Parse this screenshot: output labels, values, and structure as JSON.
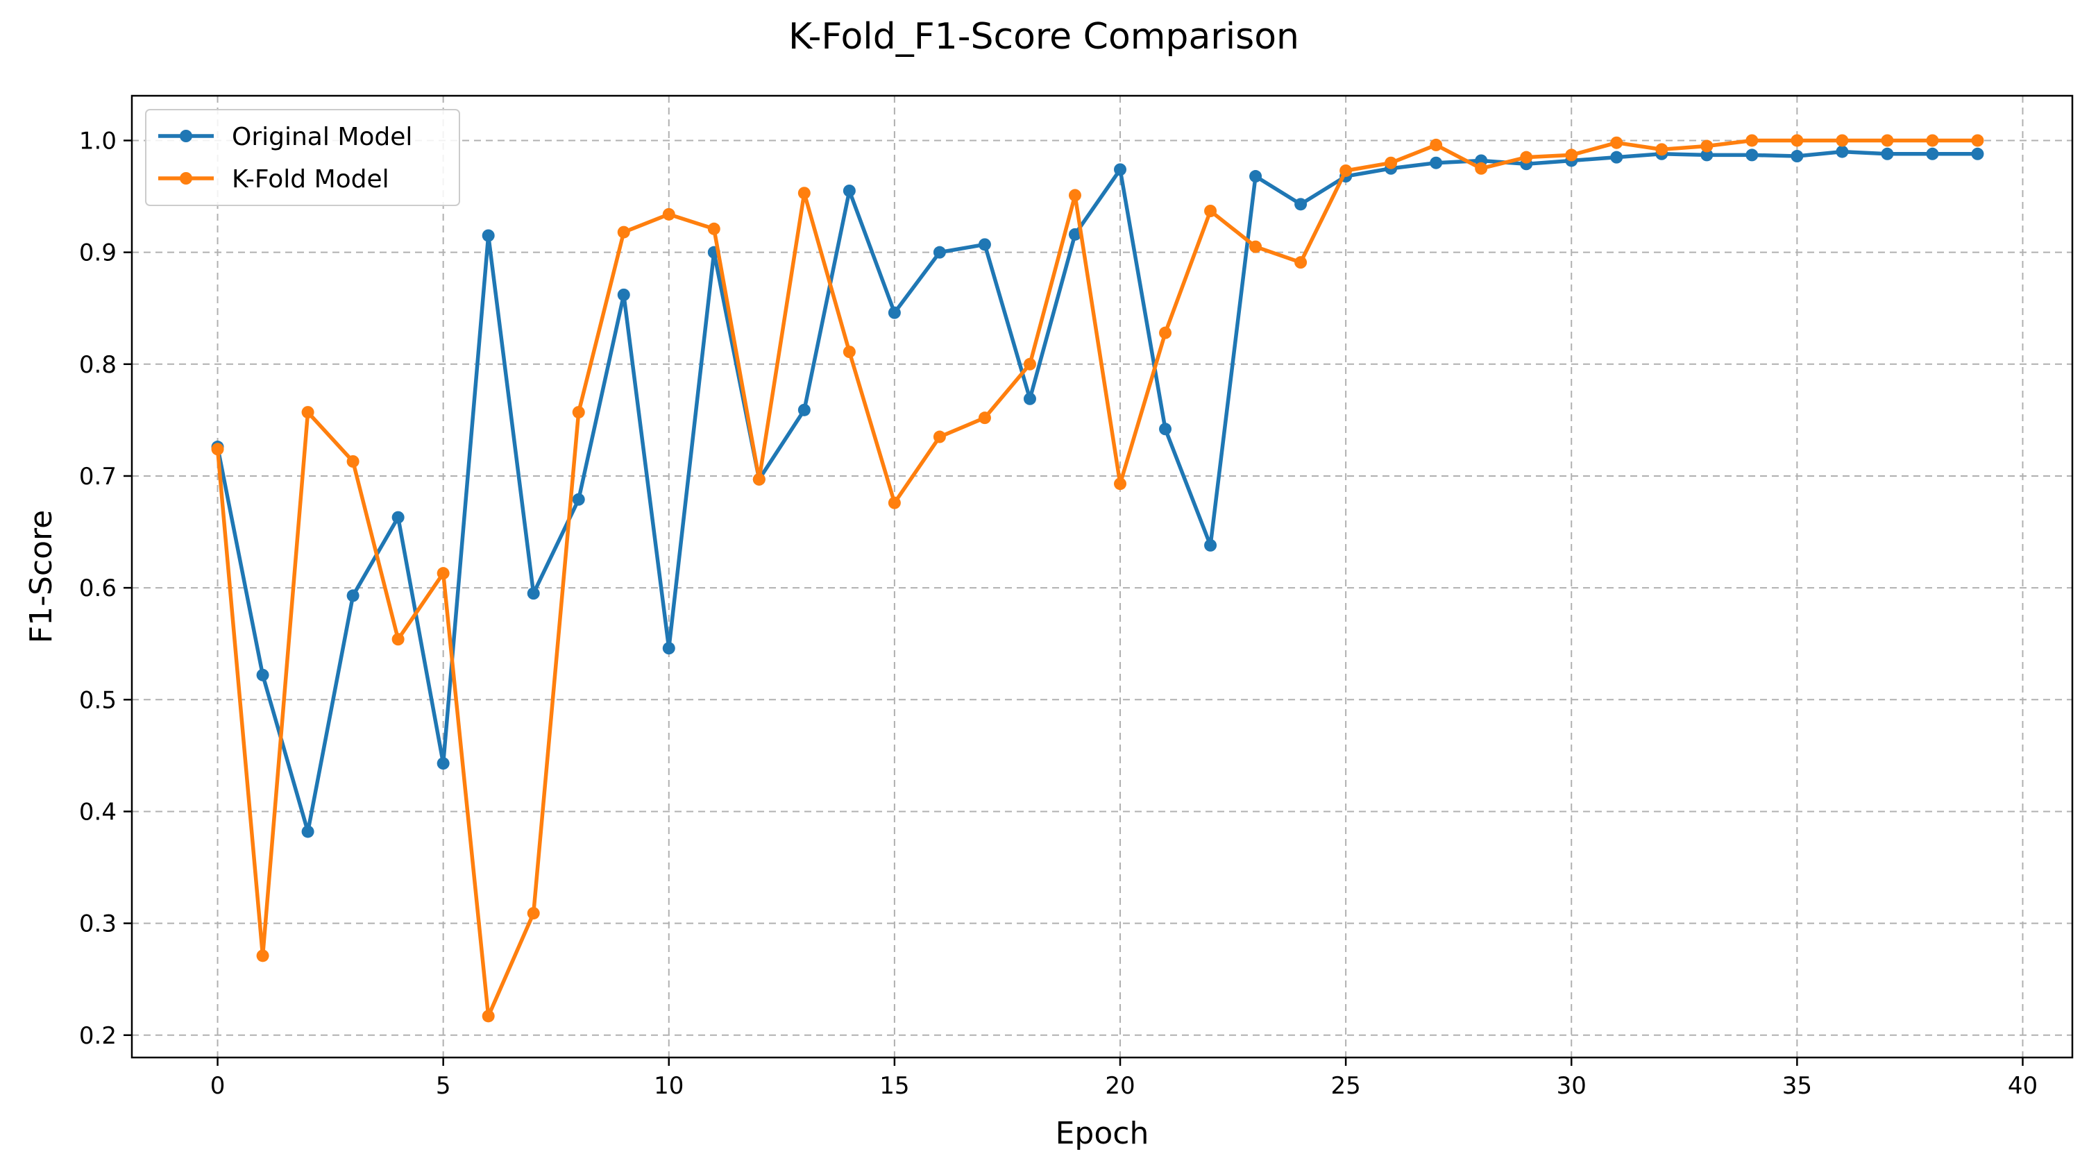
{
  "chart_data": {
    "type": "line",
    "title": "K-Fold_F1-Score Comparison",
    "xlabel": "Epoch",
    "ylabel": "F1-Score",
    "xlim": [
      -1.9,
      41.1
    ],
    "ylim": [
      0.18,
      1.04
    ],
    "xticks": [
      0,
      5,
      10,
      15,
      20,
      25,
      30,
      35,
      40
    ],
    "yticks": [
      0.2,
      0.3,
      0.4,
      0.5,
      0.6,
      0.7,
      0.8,
      0.9,
      1.0
    ],
    "ytick_labels": [
      "0.2",
      "0.3",
      "0.4",
      "0.5",
      "0.6",
      "0.7",
      "0.8",
      "0.9",
      "1.0"
    ],
    "grid": true,
    "legend_position": "top-left",
    "x": [
      0,
      1,
      2,
      3,
      4,
      5,
      6,
      7,
      8,
      9,
      10,
      11,
      12,
      13,
      14,
      15,
      16,
      17,
      18,
      19,
      20,
      21,
      22,
      23,
      24,
      25,
      26,
      27,
      28,
      29,
      30,
      31,
      32,
      33,
      34,
      35,
      36,
      37,
      38,
      39
    ],
    "series": [
      {
        "name": "Original Model",
        "color": "#1f77b4",
        "values": [
          0.726,
          0.522,
          0.382,
          0.593,
          0.663,
          0.443,
          0.915,
          0.595,
          0.679,
          0.862,
          0.546,
          0.9,
          0.697,
          0.759,
          0.955,
          0.846,
          0.9,
          0.907,
          0.769,
          0.916,
          0.974,
          0.742,
          0.638,
          0.968,
          0.943,
          0.968,
          0.975,
          0.98,
          0.982,
          0.979,
          0.982,
          0.985,
          0.988,
          0.987,
          0.987,
          0.986,
          0.99,
          0.988,
          0.988,
          0.988
        ]
      },
      {
        "name": "K-Fold Model",
        "color": "#ff7f0e",
        "values": [
          0.724,
          0.271,
          0.757,
          0.713,
          0.554,
          0.613,
          0.217,
          0.309,
          0.757,
          0.918,
          0.934,
          0.921,
          0.697,
          0.953,
          0.811,
          0.676,
          0.735,
          0.752,
          0.8,
          0.951,
          0.693,
          0.828,
          0.937,
          0.905,
          0.891,
          0.973,
          0.98,
          0.996,
          0.975,
          0.985,
          0.987,
          0.998,
          0.992,
          0.995,
          1.0,
          1.0,
          1.0,
          1.0,
          1.0,
          1.0
        ]
      }
    ]
  }
}
